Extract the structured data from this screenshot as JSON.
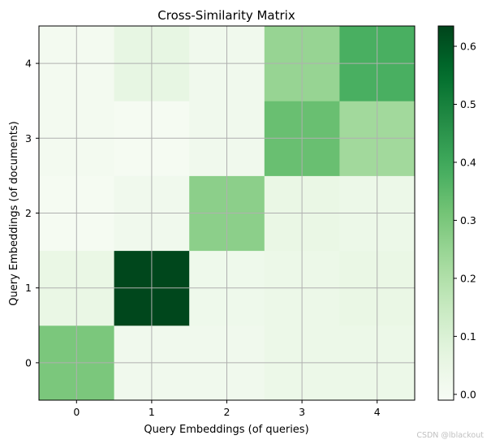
{
  "chart_data": {
    "type": "heatmap",
    "title": "Cross-Similarity Matrix",
    "xlabel": "Query Embeddings (of queries)",
    "ylabel": "Query Embeddings (of documents)",
    "x_categories": [
      "0",
      "1",
      "2",
      "3",
      "4"
    ],
    "y_categories": [
      "0",
      "1",
      "2",
      "3",
      "4"
    ],
    "values": [
      [
        0.3,
        0.02,
        0.02,
        0.04,
        0.04
      ],
      [
        0.05,
        0.63,
        0.03,
        0.04,
        0.05
      ],
      [
        0.0,
        0.02,
        0.27,
        0.05,
        0.04
      ],
      [
        0.01,
        0.0,
        0.02,
        0.33,
        0.23
      ],
      [
        0.01,
        0.06,
        0.02,
        0.25,
        0.38
      ]
    ],
    "values_orientation": "rows = y index (document), columns = x index (query)",
    "colormap": "Greens",
    "colorbar": {
      "vmin": -0.01,
      "vmax": 0.635,
      "ticks": [
        0.0,
        0.1,
        0.2,
        0.3,
        0.4,
        0.5,
        0.6
      ],
      "tick_labels": [
        "0.0",
        "0.1",
        "0.2",
        "0.3",
        "0.4",
        "0.5",
        "0.6"
      ]
    },
    "grid": true,
    "xlim": [
      -0.5,
      4.5
    ],
    "ylim": [
      -0.5,
      4.5
    ]
  },
  "watermark": "CSDN @lblackout"
}
